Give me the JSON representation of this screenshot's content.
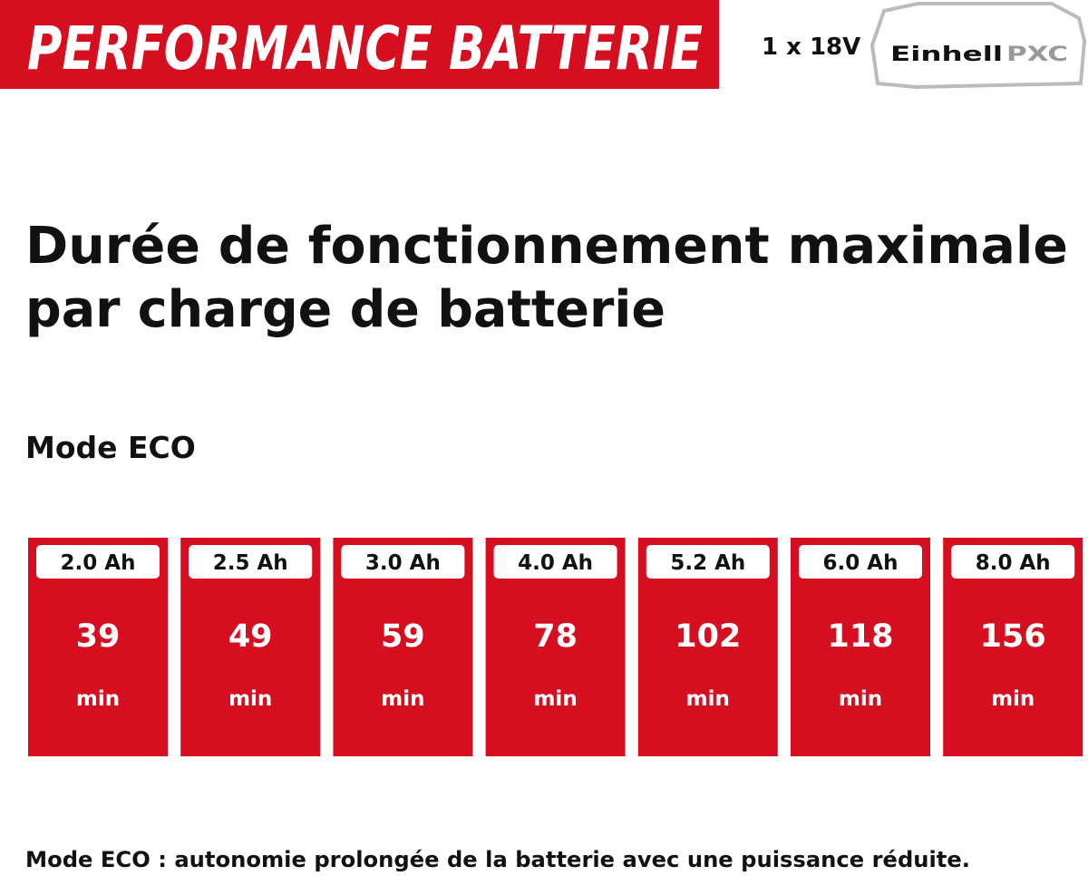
{
  "banner": {
    "title": "PERFORMANCE BATTERIE",
    "battery_count": "1 x 18V",
    "logo": {
      "brand": "Einhell",
      "system": "PXC"
    }
  },
  "heading": {
    "lines": [
      "Durée de fonctionnement maximale",
      "par charge de batterie"
    ]
  },
  "mode": "Mode ECO",
  "cards": [
    {
      "capacity": "2.0 Ah",
      "runtime": 39,
      "unit": "min"
    },
    {
      "capacity": "2.5 Ah",
      "runtime": 49,
      "unit": "min"
    },
    {
      "capacity": "3.0 Ah",
      "runtime": 59,
      "unit": "min"
    },
    {
      "capacity": "4.0 Ah",
      "runtime": 78,
      "unit": "min"
    },
    {
      "capacity": "5.2 Ah",
      "runtime": 102,
      "unit": "min"
    },
    {
      "capacity": "6.0 Ah",
      "runtime": 118,
      "unit": "min"
    },
    {
      "capacity": "8.0 Ah",
      "runtime": 156,
      "unit": "min"
    }
  ],
  "footnote": "Mode ECO : autonomie prolongée de la batterie avec une puissance réduite."
}
